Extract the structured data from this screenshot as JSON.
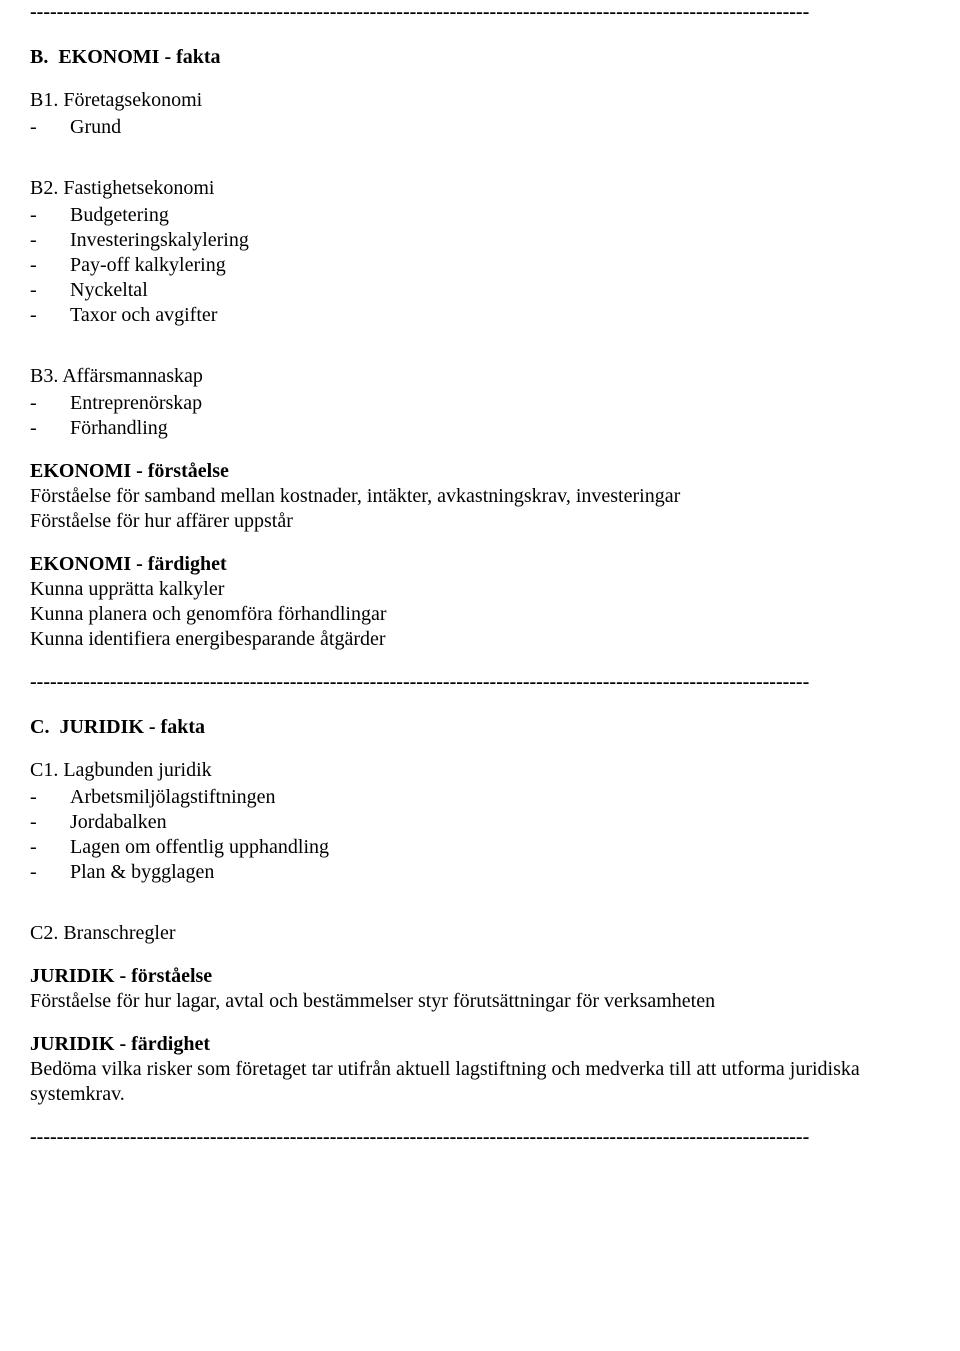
{
  "colors": {
    "text": "#000000",
    "background": "#ffffff"
  },
  "typography": {
    "font_family": "Times New Roman",
    "font_size_pt": 15,
    "line_height": 1.25
  },
  "divider": "---------------------------------------------------------------------------------------------------------------------",
  "sectionB": {
    "heading": "B. EKONOMI - fakta",
    "b1": {
      "title": "B1. Företagsekonomi",
      "items": [
        "Grund"
      ]
    },
    "b2": {
      "title": "B2. Fastighetsekonomi",
      "items": [
        "Budgetering",
        "Investeringskalylering",
        "Pay-off kalkylering",
        "Nyckeltal",
        "Taxor och avgifter"
      ]
    },
    "b3": {
      "title": "B3. Affärsmannaskap",
      "items": [
        "Entreprenörskap",
        "Förhandling"
      ]
    },
    "forstaelse": {
      "heading": "EKONOMI - förståelse",
      "lines": [
        "Förståelse för samband mellan kostnader, intäkter, avkastningskrav, investeringar",
        "Förståelse för hur affärer uppstår"
      ]
    },
    "fardighet": {
      "heading": "EKONOMI - färdighet",
      "lines": [
        "Kunna upprätta kalkyler",
        "Kunna planera och genomföra förhandlingar",
        "Kunna identifiera energibesparande åtgärder"
      ]
    }
  },
  "sectionC": {
    "heading": "C. JURIDIK - fakta",
    "c1": {
      "title": "C1. Lagbunden juridik",
      "items": [
        "Arbetsmiljölagstiftningen",
        "Jordabalken",
        "Lagen om offentlig upphandling",
        "Plan & bygglagen"
      ]
    },
    "c2": {
      "title": "C2. Branschregler"
    },
    "forstaelse": {
      "heading": "JURIDIK - förståelse",
      "lines": [
        "Förståelse för hur lagar, avtal och bestämmelser styr förutsättningar för verksamheten"
      ]
    },
    "fardighet": {
      "heading": "JURIDIK - färdighet",
      "lines": [
        "Bedöma vilka risker som företaget tar utifrån aktuell lagstiftning och medverka till att utforma juridiska systemkrav."
      ]
    }
  }
}
